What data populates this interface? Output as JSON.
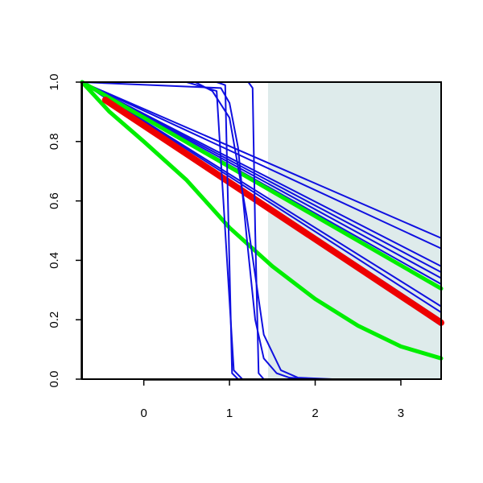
{
  "chart_data": {
    "type": "line",
    "title": "",
    "xlabel": "",
    "ylabel": "",
    "xlim": [
      -0.72,
      3.47
    ],
    "ylim": [
      0.0,
      1.0
    ],
    "x_ticks": [
      0,
      1,
      2,
      3
    ],
    "y_ticks": [
      0.0,
      0.2,
      0.4,
      0.6,
      0.8,
      1.0
    ],
    "x_tick_labels": [
      "0",
      "1",
      "2",
      "3"
    ],
    "y_tick_labels": [
      "0.0",
      "0.2",
      "0.4",
      "0.6",
      "0.8",
      "1.0"
    ],
    "grid": false,
    "legend": "none",
    "shaded_region": {
      "x_start": 1.45,
      "x_end": 3.47,
      "y_start": 0.0,
      "y_end": 1.0,
      "color": "#deebeb"
    },
    "colors": {
      "blue": "#1010e0",
      "red": "#ee0000",
      "green": "#00ee00"
    },
    "series": [
      {
        "color": "#1010e0",
        "width": 2,
        "x": [
          -0.72,
          3.47
        ],
        "y": [
          1.0,
          0.475
        ]
      },
      {
        "color": "#1010e0",
        "width": 2,
        "x": [
          -0.72,
          3.47
        ],
        "y": [
          1.0,
          0.44
        ]
      },
      {
        "color": "#1010e0",
        "width": 2,
        "x": [
          -0.72,
          3.47
        ],
        "y": [
          1.0,
          0.38
        ]
      },
      {
        "color": "#1010e0",
        "width": 2,
        "x": [
          -0.72,
          3.47
        ],
        "y": [
          1.0,
          0.36
        ]
      },
      {
        "color": "#1010e0",
        "width": 2,
        "x": [
          -0.72,
          3.47
        ],
        "y": [
          1.0,
          0.34
        ]
      },
      {
        "color": "#1010e0",
        "width": 2,
        "x": [
          -0.72,
          3.47
        ],
        "y": [
          1.0,
          0.32
        ]
      },
      {
        "color": "#1010e0",
        "width": 2,
        "x": [
          -0.72,
          3.47
        ],
        "y": [
          1.0,
          0.245
        ]
      },
      {
        "color": "#1010e0",
        "width": 2,
        "x": [
          -0.72,
          3.47
        ],
        "y": [
          1.0,
          0.225
        ]
      },
      {
        "color": "#1010e0",
        "width": 2,
        "x": [
          -0.72,
          3.47
        ],
        "y": [
          1.0,
          0.2
        ]
      },
      {
        "color": "#1010e0",
        "width": 2,
        "x": [
          -0.72,
          3.47
        ],
        "y": [
          1.0,
          0.18
        ]
      },
      {
        "color": "#00ee00",
        "width": 5,
        "x": [
          -0.72,
          3.47
        ],
        "y": [
          1.0,
          0.305
        ]
      },
      {
        "color": "#00ee00",
        "width": 5,
        "x": [
          -0.72,
          -0.4,
          0.0,
          0.5,
          1.0,
          1.5,
          2.0,
          2.5,
          3.0,
          3.47
        ],
        "y": [
          1.0,
          0.9,
          0.8,
          0.67,
          0.51,
          0.38,
          0.27,
          0.18,
          0.11,
          0.07
        ]
      },
      {
        "color": "#ee0000",
        "width": 8,
        "x": [
          -0.45,
          3.47
        ],
        "y": [
          0.94,
          0.19
        ]
      },
      {
        "color": "#1010e0",
        "width": 2,
        "x": [
          -0.72,
          0.5,
          0.85,
          0.95,
          1.05,
          1.15,
          1.4,
          3.47
        ],
        "y": [
          1.0,
          1.0,
          0.97,
          0.5,
          0.03,
          0.0,
          0.0,
          0.0
        ]
      },
      {
        "color": "#1010e0",
        "width": 2,
        "x": [
          -0.72,
          0.85,
          0.95,
          0.99,
          1.03,
          1.1,
          3.47
        ],
        "y": [
          1.0,
          1.0,
          0.99,
          0.5,
          0.02,
          0.0,
          0.0
        ]
      },
      {
        "color": "#1010e0",
        "width": 2,
        "x": [
          -0.72,
          1.22,
          1.27,
          1.3,
          1.34,
          1.4,
          3.47
        ],
        "y": [
          1.0,
          1.0,
          0.98,
          0.5,
          0.02,
          0.0,
          0.0
        ]
      },
      {
        "color": "#1010e0",
        "width": 2,
        "x": [
          -0.72,
          0.6,
          0.8,
          1.0,
          1.2,
          1.4,
          1.6,
          1.8,
          2.2,
          3.47
        ],
        "y": [
          1.0,
          1.0,
          0.97,
          0.88,
          0.55,
          0.15,
          0.03,
          0.005,
          0.0,
          0.0
        ]
      },
      {
        "color": "#1010e0",
        "width": 2,
        "x": [
          -0.72,
          0.9,
          1.0,
          1.1,
          1.2,
          1.3,
          1.4,
          1.55,
          1.7,
          2.0,
          3.47
        ],
        "y": [
          1.0,
          0.98,
          0.93,
          0.78,
          0.48,
          0.2,
          0.07,
          0.02,
          0.005,
          0.0,
          0.0
        ]
      }
    ]
  }
}
